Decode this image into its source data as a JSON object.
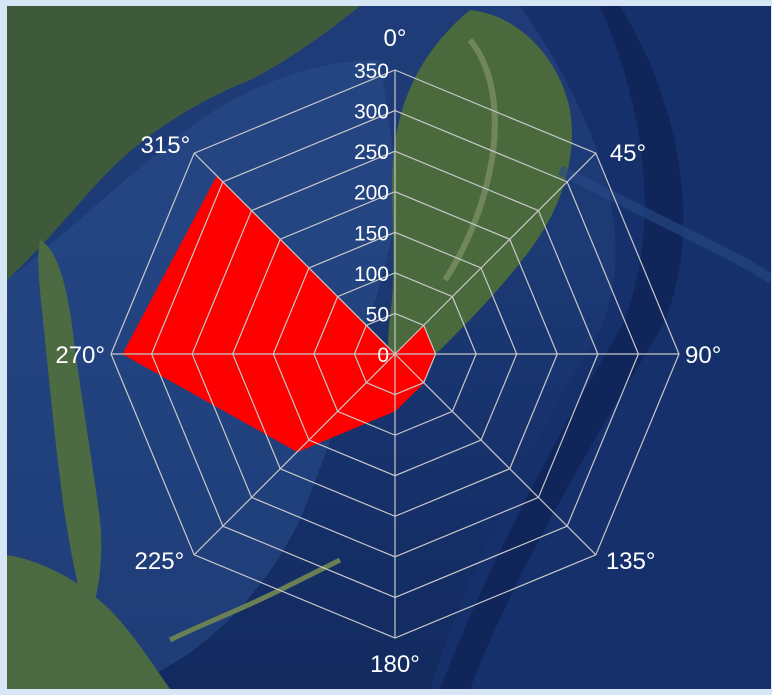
{
  "chart_data": {
    "type": "radar",
    "directions": [
      "0°",
      "45°",
      "90°",
      "135°",
      "180°",
      "225°",
      "270°",
      "315°"
    ],
    "values": [
      0,
      50,
      50,
      50,
      70,
      170,
      335,
      310
    ],
    "rlim": [
      0,
      350
    ],
    "radial_ticks": [
      "0",
      "50",
      "100",
      "150",
      "200",
      "250",
      "300",
      "350"
    ],
    "grid": true,
    "polygon_grid": true,
    "fill_color": "#ff0000",
    "grid_color": "#c8c8c8",
    "label_color": "#ffffff",
    "background": "satellite-map"
  }
}
